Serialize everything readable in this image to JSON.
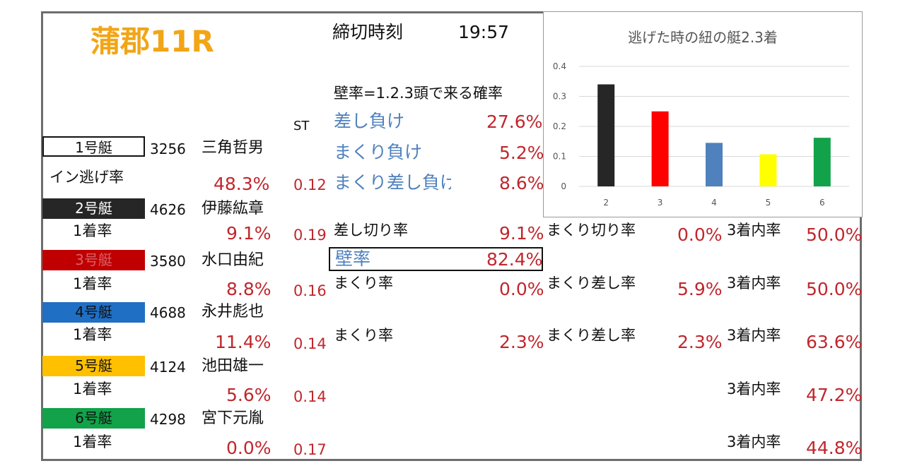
{
  "header": {
    "race_title": "蒲郡11R",
    "deadline_label": "締切時刻",
    "deadline_time": "19:57"
  },
  "st_header": "ST",
  "wall": {
    "heading": "壁率=1.2.3頭で来る確率",
    "items": [
      {
        "label": "差し負け",
        "value": "27.6%"
      },
      {
        "label": "まくり負け",
        "value": "5.2%"
      },
      {
        "label": "まくり差し負け",
        "value": "8.6%"
      }
    ],
    "sashikiri_label": "差し切り率",
    "sashikiri_value": "9.1%",
    "kabe_label": "壁率",
    "kabe_value": "82.4%"
  },
  "boats": [
    {
      "boat_label": "1号艇",
      "reg": "3256",
      "name": "三角哲男",
      "rate_label": "イン逃げ率",
      "rate": "48.3%",
      "st": "0.12",
      "bg": "#ffffff",
      "fg": "#111111"
    },
    {
      "boat_label": "2号艇",
      "reg": "4626",
      "name": "伊藤紘章",
      "rate_label": "1着率",
      "rate": "9.1%",
      "st": "0.19",
      "bg": "#262626",
      "fg": "#ffffff"
    },
    {
      "boat_label": "3号艇",
      "reg": "3580",
      "name": "水口由紀",
      "rate_label": "1着率",
      "rate": "8.8%",
      "st": "0.16",
      "bg": "#c00000",
      "fg": "#d9606a"
    },
    {
      "boat_label": "4号艇",
      "reg": "4688",
      "name": "永井彪也",
      "rate_label": "1着率",
      "rate": "11.4%",
      "st": "0.14",
      "bg": "#1f6fc4",
      "fg": "#111111"
    },
    {
      "boat_label": "5号艇",
      "reg": "4124",
      "name": "池田雄一",
      "rate_label": "1着率",
      "rate": "5.6%",
      "st": "0.14",
      "bg": "#ffc000",
      "fg": "#111111"
    },
    {
      "boat_label": "6号艇",
      "reg": "4298",
      "name": "宮下元胤",
      "rate_label": "1着率",
      "rate": "0.0%",
      "st": "0.17",
      "bg": "#12a24a",
      "fg": "#111111"
    }
  ],
  "attack": [
    {
      "makuri_label": "まくり率",
      "makuri": "0.0%",
      "makurisashi_label": "まくり差し率",
      "makurisashi": "5.9%"
    },
    {
      "makuri_label": "まくり率",
      "makuri": "2.3%",
      "makurisashi_label": "まくり差し率",
      "makurisashi": "2.3%"
    }
  ],
  "makurikiri_label": "まくり切り率",
  "makurikiri_value": "0.0%",
  "top3": [
    {
      "label": "3着内率",
      "value": "50.0%"
    },
    {
      "label": "3着内率",
      "value": "50.0%"
    },
    {
      "label": "3着内率",
      "value": "63.6%"
    },
    {
      "label": "3着内率",
      "value": "47.2%"
    },
    {
      "label": "3着内率",
      "value": "44.8%"
    }
  ],
  "chart_data": {
    "type": "bar",
    "title": "逃げた時の紐の艇2.3着",
    "categories": [
      "2",
      "3",
      "4",
      "5",
      "6"
    ],
    "values": [
      0.34,
      0.25,
      0.145,
      0.107,
      0.162
    ],
    "colors": [
      "#262626",
      "#ff0000",
      "#4f81bd",
      "#ffff00",
      "#12a24a"
    ],
    "ylim": [
      0,
      0.4
    ],
    "yticks": [
      "0",
      "0.1",
      "0.2",
      "0.3",
      "0.4"
    ],
    "grid": true,
    "legend": "none"
  }
}
